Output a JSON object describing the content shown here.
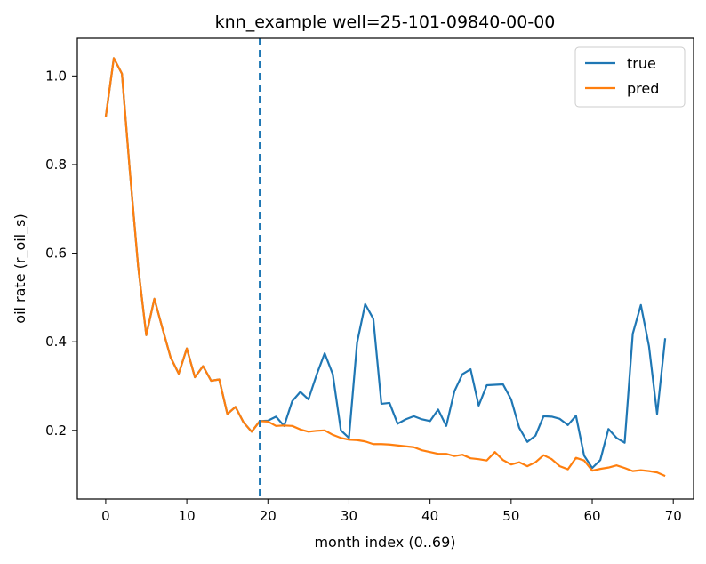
{
  "chart_data": {
    "type": "line",
    "title": "knn_example well=25-101-09840-00-00",
    "xlabel": "month index (0..69)",
    "ylabel": "oil rate (r_oil_s)",
    "xlim": [
      -3.5,
      72.5
    ],
    "ylim": [
      0.045,
      1.085
    ],
    "xticks": [
      0,
      10,
      20,
      30,
      40,
      50,
      60,
      70
    ],
    "yticks": [
      0.2,
      0.4,
      0.6,
      0.8,
      1.0
    ],
    "xtick_labels": [
      "0",
      "10",
      "20",
      "30",
      "40",
      "50",
      "60",
      "70"
    ],
    "ytick_labels": [
      "0.2",
      "0.4",
      "0.6",
      "0.8",
      "1.0"
    ],
    "grid": false,
    "legend_position": "top-right",
    "vline": {
      "x": 19,
      "style": "dashed",
      "color": "#1f77b4"
    },
    "x": [
      0,
      1,
      2,
      3,
      4,
      5,
      6,
      7,
      8,
      9,
      10,
      11,
      12,
      13,
      14,
      15,
      16,
      17,
      18,
      19,
      20,
      21,
      22,
      23,
      24,
      25,
      26,
      27,
      28,
      29,
      30,
      31,
      32,
      33,
      34,
      35,
      36,
      37,
      38,
      39,
      40,
      41,
      42,
      43,
      44,
      45,
      46,
      47,
      48,
      49,
      50,
      51,
      52,
      53,
      54,
      55,
      56,
      57,
      58,
      59,
      60,
      61,
      62,
      63,
      64,
      65,
      66,
      67,
      68,
      69
    ],
    "series": [
      {
        "name": "true",
        "color": "#1f77b4",
        "values": [
          0.907,
          1.04,
          1.005,
          0.78,
          0.57,
          0.415,
          0.497,
          0.43,
          0.365,
          0.328,
          0.385,
          0.32,
          0.345,
          0.312,
          0.315,
          0.237,
          0.253,
          0.218,
          0.197,
          0.221,
          0.222,
          0.231,
          0.21,
          0.266,
          0.287,
          0.27,
          0.325,
          0.374,
          0.327,
          0.2,
          0.183,
          0.398,
          0.485,
          0.452,
          0.26,
          0.262,
          0.215,
          0.225,
          0.232,
          0.225,
          0.221,
          0.247,
          0.21,
          0.288,
          0.327,
          0.338,
          0.256,
          0.302,
          0.303,
          0.304,
          0.27,
          0.206,
          0.174,
          0.188,
          0.232,
          0.231,
          0.226,
          0.212,
          0.233,
          0.143,
          0.115,
          0.133,
          0.203,
          0.183,
          0.172,
          0.418,
          0.483,
          0.39,
          0.237,
          0.408
        ]
      },
      {
        "name": "pred",
        "color": "#ff7f0e",
        "values": [
          0.907,
          1.04,
          1.005,
          0.78,
          0.57,
          0.415,
          0.497,
          0.43,
          0.365,
          0.328,
          0.385,
          0.32,
          0.345,
          0.312,
          0.315,
          0.237,
          0.253,
          0.218,
          0.197,
          0.221,
          0.22,
          0.21,
          0.211,
          0.21,
          0.202,
          0.197,
          0.199,
          0.2,
          0.19,
          0.183,
          0.179,
          0.178,
          0.175,
          0.169,
          0.169,
          0.168,
          0.166,
          0.164,
          0.162,
          0.155,
          0.151,
          0.147,
          0.147,
          0.142,
          0.145,
          0.137,
          0.135,
          0.132,
          0.151,
          0.133,
          0.123,
          0.128,
          0.119,
          0.128,
          0.144,
          0.135,
          0.119,
          0.112,
          0.138,
          0.132,
          0.109,
          0.113,
          0.116,
          0.121,
          0.115,
          0.108,
          0.11,
          0.108,
          0.105,
          0.097
        ]
      }
    ]
  }
}
